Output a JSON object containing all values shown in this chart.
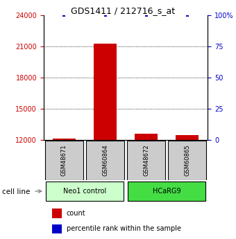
{
  "title": "GDS1411 / 212716_s_at",
  "samples": [
    "GSM48671",
    "GSM60864",
    "GSM48672",
    "GSM60865"
  ],
  "group_labels": [
    "Neo1 control",
    "HCaRG9"
  ],
  "group_colors": [
    "#ccffcc",
    "#44dd44"
  ],
  "count_values": [
    12100,
    21300,
    12600,
    12450
  ],
  "percentile_values": [
    100,
    100,
    100,
    100
  ],
  "ylim_left": [
    12000,
    24000
  ],
  "ylim_right": [
    0,
    100
  ],
  "yticks_left": [
    12000,
    15000,
    18000,
    21000,
    24000
  ],
  "yticks_right": [
    0,
    25,
    50,
    75,
    100
  ],
  "yticklabels_right": [
    "0",
    "25",
    "50",
    "75",
    "100%"
  ],
  "left_tick_color": "#cc0000",
  "right_tick_color": "#0000cc",
  "bar_color": "#cc0000",
  "dot_color": "#0000cc",
  "sample_box_color": "#cccccc",
  "legend_count_color": "#cc0000",
  "legend_pct_color": "#0000cc"
}
